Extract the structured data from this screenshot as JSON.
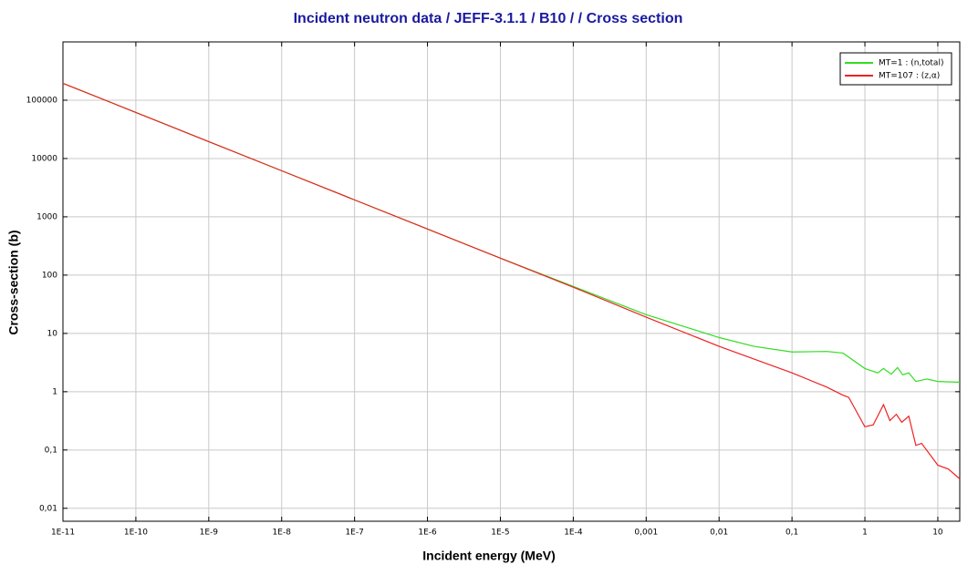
{
  "chart_data": {
    "type": "line",
    "title": "Incident neutron data / JEFF-3.1.1 / B10 / / Cross section",
    "x_label": "Incident energy (MeV)",
    "y_label": "Cross-section (b)",
    "xscale": "log",
    "yscale": "log",
    "grid": true,
    "legend": "top-right",
    "xlim": [
      1e-11,
      20
    ],
    "ylim": [
      0.006,
      1000000
    ],
    "xticks": [
      {
        "value": 1e-11,
        "label": "1E-11"
      },
      {
        "value": 1e-10,
        "label": "1E-10"
      },
      {
        "value": 1e-09,
        "label": "1E-9"
      },
      {
        "value": 1e-08,
        "label": "1E-8"
      },
      {
        "value": 1e-07,
        "label": "1E-7"
      },
      {
        "value": 1e-06,
        "label": "1E-6"
      },
      {
        "value": 1e-05,
        "label": "1E-5"
      },
      {
        "value": 0.0001,
        "label": "1E-4"
      },
      {
        "value": 0.001,
        "label": "0,001"
      },
      {
        "value": 0.01,
        "label": "0,01"
      },
      {
        "value": 0.1,
        "label": "0,1"
      },
      1,
      10
    ],
    "yticks": [
      {
        "value": 0.01,
        "label": "0,01"
      },
      {
        "value": 0.1,
        "label": "0,1"
      },
      1,
      10,
      100,
      1000,
      10000,
      100000
    ],
    "series": [
      {
        "name": "MT=1 : (n,total)",
        "color": "#33dd22",
        "x": [
          1e-11,
          1e-10,
          1e-09,
          1e-08,
          1e-07,
          1e-06,
          1e-05,
          0.0001,
          0.001,
          0.01,
          0.03,
          0.1,
          0.3,
          0.5,
          1,
          1.5,
          1.8,
          2.3,
          2.8,
          3.3,
          4,
          5,
          7,
          10,
          20
        ],
        "values": [
          195000,
          61700,
          19500,
          6170,
          1950,
          617,
          195,
          64,
          21,
          8.5,
          6,
          4.8,
          4.9,
          4.6,
          2.5,
          2.1,
          2.5,
          2.0,
          2.6,
          1.95,
          2.1,
          1.5,
          1.65,
          1.5,
          1.45
        ]
      },
      {
        "name": "MT=107 : (z,α)",
        "color": "#ee2222",
        "x": [
          1e-11,
          1e-10,
          1e-09,
          1e-08,
          1e-07,
          1e-06,
          1e-05,
          0.0001,
          0.001,
          0.01,
          0.1,
          0.3,
          0.5,
          0.6,
          1,
          1.3,
          1.8,
          2.2,
          2.7,
          3.2,
          4,
          5,
          6,
          8,
          10,
          14,
          20
        ],
        "values": [
          195000,
          61700,
          19500,
          6170,
          1950,
          617,
          195,
          62,
          19,
          6,
          2.1,
          1.2,
          0.87,
          0.8,
          0.25,
          0.27,
          0.6,
          0.32,
          0.41,
          0.3,
          0.38,
          0.12,
          0.13,
          0.08,
          0.055,
          0.047,
          0.032
        ]
      }
    ]
  }
}
